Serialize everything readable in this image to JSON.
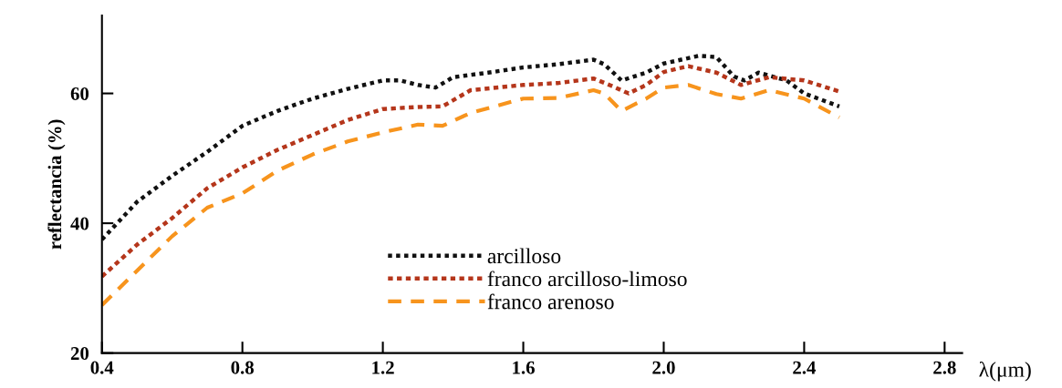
{
  "chart_data": {
    "type": "line",
    "xlabel": "λ(μm)",
    "ylabel": "reflectancia (%)",
    "xlim": [
      0.4,
      2.85
    ],
    "ylim": [
      20,
      72
    ],
    "xticks": [
      0.4,
      0.8,
      1.2,
      1.6,
      {
        "value": 2.0,
        "label": "2.0"
      },
      2.4,
      2.8
    ],
    "yticks": [
      20,
      40,
      60
    ],
    "grid": false,
    "legend": "bottom",
    "marker": "none",
    "series": [
      {
        "name": "arcilloso",
        "color": "#111111",
        "line_style": "dotted",
        "x": [
          0.4,
          0.5,
          0.6,
          0.7,
          0.8,
          0.9,
          1.0,
          1.1,
          1.2,
          1.25,
          1.3,
          1.35,
          1.4,
          1.5,
          1.6,
          1.7,
          1.8,
          1.83,
          1.88,
          1.95,
          2.0,
          2.1,
          2.15,
          2.2,
          2.23,
          2.27,
          2.35,
          2.4,
          2.5
        ],
        "values": [
          37.5,
          43.3,
          47.3,
          51,
          55,
          57.3,
          59.2,
          60.7,
          62,
          62,
          61.3,
          60.9,
          62.5,
          63.2,
          64,
          64.5,
          65.2,
          64.5,
          62,
          63.2,
          64.6,
          65.8,
          65.6,
          62.6,
          62,
          63.2,
          62,
          60,
          58
        ]
      },
      {
        "name": "franco arcilloso-limoso",
        "color": "#b5361b",
        "line_style": "dotted",
        "x": [
          0.4,
          0.5,
          0.6,
          0.7,
          0.8,
          0.9,
          1.0,
          1.1,
          1.2,
          1.3,
          1.37,
          1.45,
          1.6,
          1.7,
          1.8,
          1.85,
          1.9,
          1.95,
          2.0,
          2.07,
          2.15,
          2.22,
          2.3,
          2.4,
          2.5
        ],
        "values": [
          31.8,
          36.7,
          40.8,
          45.4,
          48.6,
          51.3,
          53.6,
          55.9,
          57.6,
          57.9,
          58,
          60.5,
          61.3,
          61.6,
          62.3,
          61.2,
          60,
          61.3,
          63.3,
          64.2,
          63.2,
          61.3,
          62.5,
          62,
          60.3
        ]
      },
      {
        "name": "franco arenoso",
        "color": "#f7941d",
        "line_style": "dashed",
        "x": [
          0.4,
          0.5,
          0.6,
          0.7,
          0.8,
          0.9,
          1.0,
          1.1,
          1.2,
          1.3,
          1.37,
          1.45,
          1.6,
          1.7,
          1.8,
          1.83,
          1.88,
          1.95,
          2.0,
          2.07,
          2.15,
          2.22,
          2.3,
          2.4,
          2.5
        ],
        "values": [
          27.4,
          32.7,
          38,
          42.4,
          44.6,
          48.1,
          50.6,
          52.6,
          54,
          55.2,
          55,
          57,
          59.2,
          59.3,
          60.5,
          60,
          57.3,
          59.2,
          60.9,
          61.3,
          59.9,
          59.2,
          60.5,
          59.2,
          56.3
        ]
      }
    ]
  }
}
